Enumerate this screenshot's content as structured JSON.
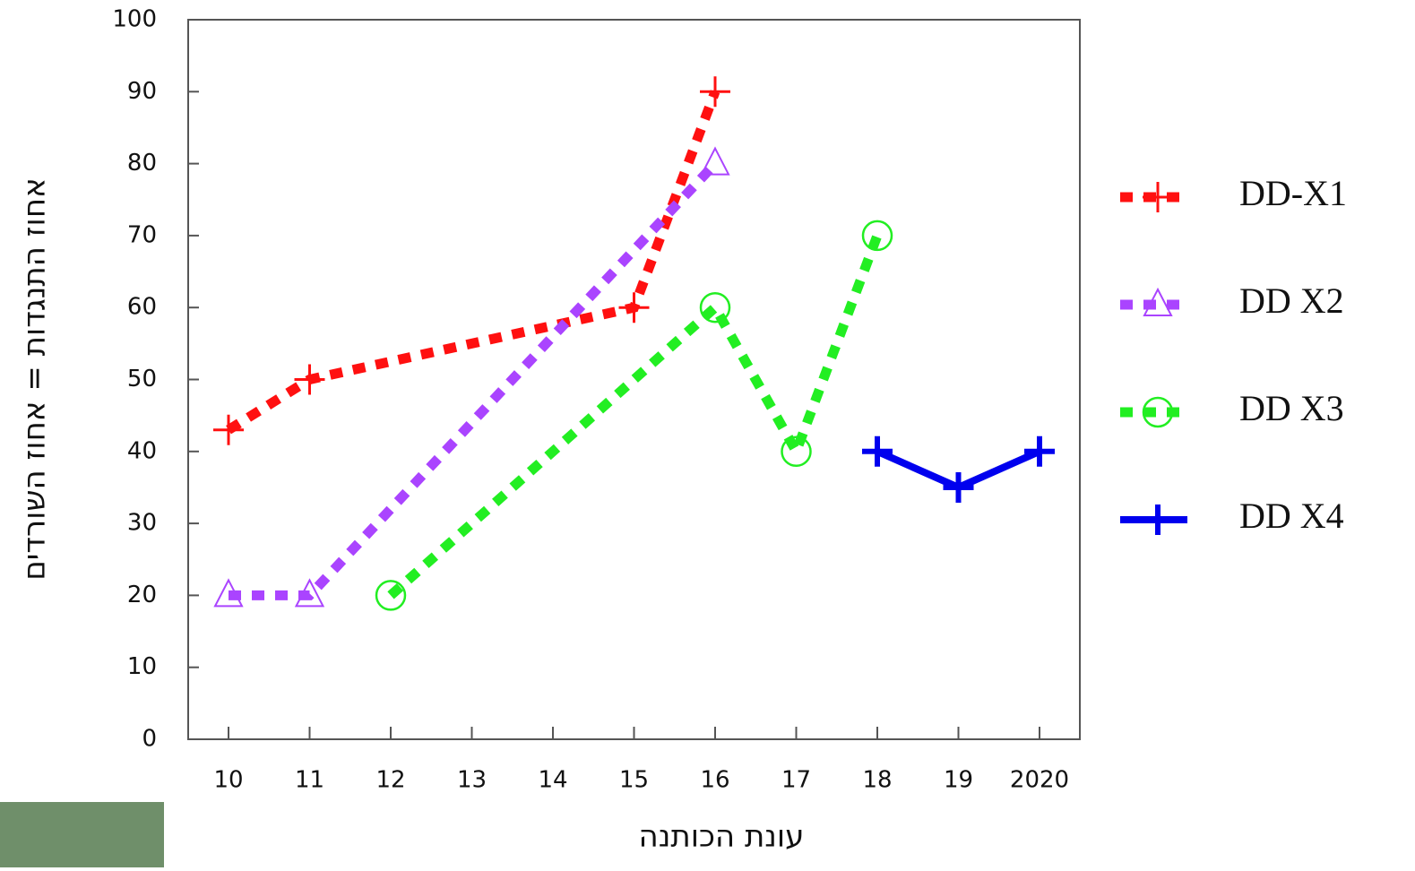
{
  "chart_data": {
    "type": "line",
    "y_label": "אחוז התנגדות = אחוז השורדים",
    "x_label": "עונת הכותנה",
    "categories": [
      "10",
      "11",
      "12",
      "13",
      "14",
      "15",
      "16",
      "17",
      "18",
      "19",
      "2020"
    ],
    "ylim": [
      0,
      100
    ],
    "yticks": [
      0,
      10,
      20,
      30,
      40,
      50,
      60,
      70,
      80,
      90,
      100
    ],
    "grid": false,
    "legend": "right",
    "series": [
      {
        "name": "DD-X1",
        "color": "#ff1010",
        "marker": "plus",
        "dashed": true,
        "x": [
          "10",
          "11",
          "15",
          "16"
        ],
        "values": [
          43,
          50,
          60,
          90
        ]
      },
      {
        "name": "DD X2",
        "color": "#aa44ff",
        "marker": "triangle",
        "dashed": true,
        "x": [
          "10",
          "11",
          "16"
        ],
        "values": [
          20,
          20,
          80
        ]
      },
      {
        "name": "DD X3",
        "color": "#22ee22",
        "marker": "circle",
        "dashed": true,
        "x": [
          "12",
          "16",
          "17",
          "18"
        ],
        "values": [
          20,
          60,
          40,
          70
        ]
      },
      {
        "name": "DD X4",
        "color": "#0000ee",
        "marker": "plus",
        "dashed": false,
        "x": [
          "18",
          "19",
          "2020"
        ],
        "values": [
          40,
          35,
          40
        ]
      }
    ]
  }
}
